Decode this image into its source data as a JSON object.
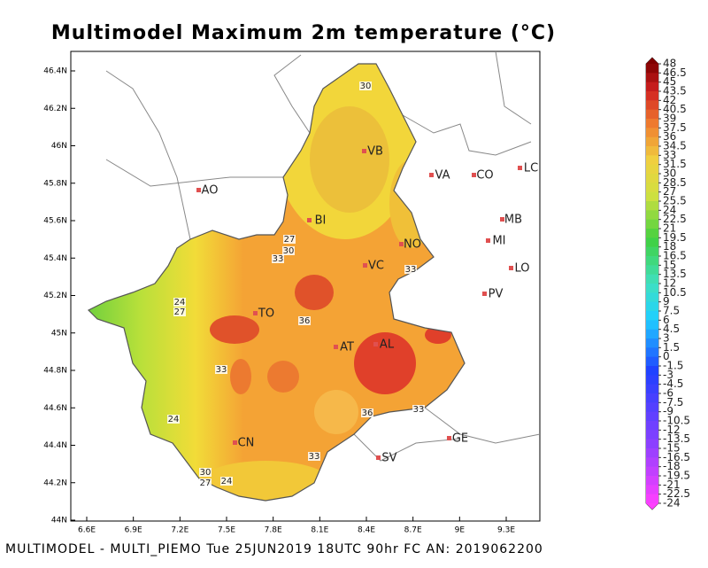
{
  "title": "Multimodel Maximum 2m temperature (°C)",
  "footer": "MULTIMODEL - MULTI_PIEMO Tue 25JUN2019 18UTC 90hr FC AN: 2019062200",
  "lat_ticks": [
    "46.4N",
    "46.2N",
    "46N",
    "45.8N",
    "45.6N",
    "45.4N",
    "45.2N",
    "45N",
    "44.8N",
    "44.6N",
    "44.4N",
    "44.2N",
    "44N"
  ],
  "lon_ticks": [
    "6.6E",
    "6.9E",
    "7.2E",
    "7.5E",
    "7.8E",
    "8.1E",
    "8.4E",
    "8.7E",
    "9E",
    "9.3E"
  ],
  "cities": [
    "AO",
    "BI",
    "VB",
    "VA",
    "CO",
    "LC",
    "NO",
    "MB",
    "MI",
    "LO",
    "PV",
    "VC",
    "TO",
    "AT",
    "AL",
    "CN",
    "GE",
    "SV"
  ],
  "contour_labels": [
    30,
    27,
    30,
    33,
    24,
    27,
    36,
    33,
    24,
    33,
    36,
    33,
    30,
    27,
    24,
    33
  ],
  "colorbar": [
    48,
    46.5,
    45,
    43.5,
    42,
    40.5,
    39,
    37.5,
    36,
    34.5,
    33,
    31.5,
    30,
    28.5,
    27,
    25.5,
    24,
    22.5,
    21,
    19.5,
    18,
    16.5,
    15,
    13.5,
    12,
    10.5,
    9,
    7.5,
    6,
    4.5,
    3,
    1.5,
    0,
    -1.5,
    -3,
    -4.5,
    -6,
    -7.5,
    -9,
    -10.5,
    -12,
    -13.5,
    -15,
    -16.5,
    -18,
    -19.5,
    -21,
    -22.5,
    -24
  ]
}
